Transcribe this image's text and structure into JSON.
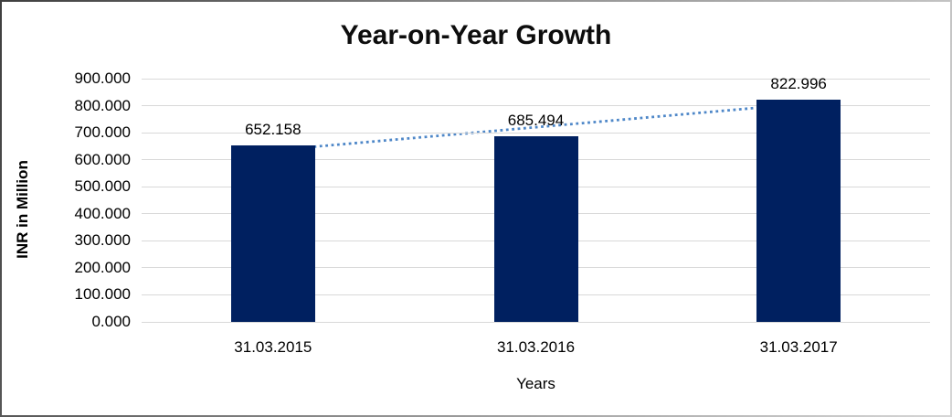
{
  "chart_data": {
    "type": "bar",
    "title": "Year-on-Year Growth",
    "xlabel": "Years",
    "ylabel": "INR in Million",
    "categories": [
      "31.03.2015",
      "31.03.2016",
      "31.03.2017"
    ],
    "values": [
      652.158,
      685.494,
      822.996
    ],
    "data_labels": [
      "652.158",
      "685.494",
      "822.996"
    ],
    "ylim": [
      0,
      900
    ],
    "ytick_step": 100,
    "ytick_labels": [
      "0.000",
      "100.000",
      "200.000",
      "300.000",
      "400.000",
      "500.000",
      "600.000",
      "700.000",
      "800.000",
      "900.000"
    ],
    "grid": true,
    "legend": "none",
    "bar_color": "#002060",
    "gridline_color": "#d9d9d9",
    "trendline": {
      "type": "linear",
      "style": "dotted",
      "color": "#4e87c8"
    }
  }
}
